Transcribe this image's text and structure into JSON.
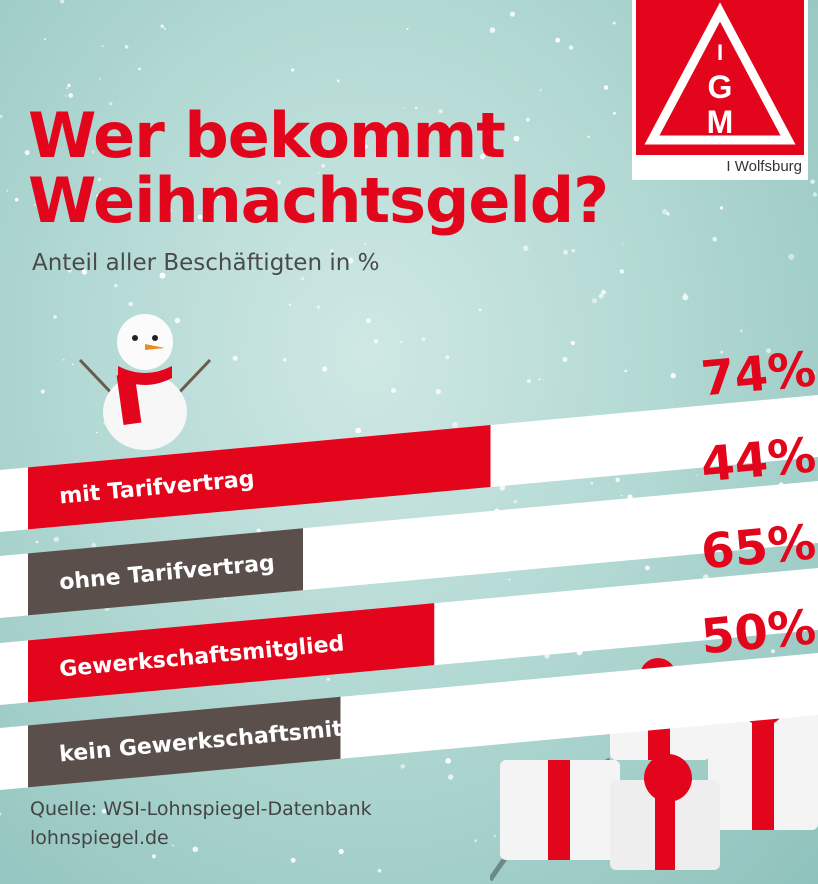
{
  "header": {
    "title_line1": "Wer bekommt",
    "title_line2": "Weihnachtsgeld?",
    "subtitle": "Anteil aller Beschäftigten in %"
  },
  "logo": {
    "letters": [
      "I",
      "G",
      "M"
    ],
    "caption": "I Wolfsburg"
  },
  "colors": {
    "brand_red": "#e3051b",
    "dark_bar": "#5b4f4c",
    "background": "#b3d9d4"
  },
  "chart_data": {
    "type": "bar",
    "orientation": "horizontal",
    "title": "Wer bekommt Weihnachtsgeld?",
    "subtitle": "Anteil aller Beschäftigten in %",
    "categories": [
      "mit Tarifvertrag",
      "ohne Tarifvertrag",
      "Gewerkschaftsmitglied",
      "kein Gewerkschaftsmitglied"
    ],
    "values": [
      74,
      44,
      65,
      50
    ],
    "value_labels": [
      "74%",
      "44%",
      "65%",
      "50%"
    ],
    "bar_colors": [
      "#e3051b",
      "#5b4f4c",
      "#e3051b",
      "#5b4f4c"
    ],
    "xlim": [
      0,
      100
    ]
  },
  "footer": {
    "source_line1": "Quelle: WSI-Lohnspiegel-Datenbank",
    "source_line2": "lohnspiegel.de"
  }
}
